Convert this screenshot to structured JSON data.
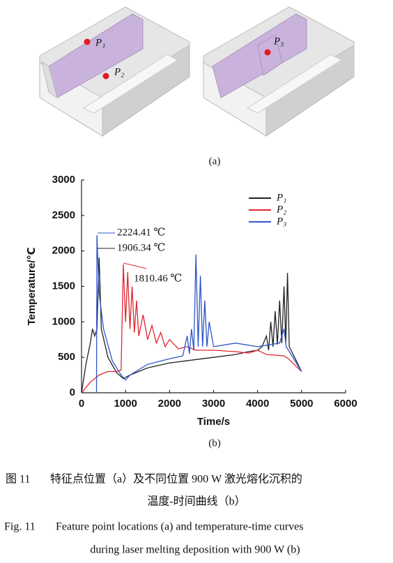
{
  "figure_a": {
    "points": [
      "P₁",
      "P₂",
      "P₃"
    ],
    "label": "(a)"
  },
  "chart_data": {
    "type": "line",
    "xlabel": "Time/s",
    "ylabel": "Temperature/℃",
    "xlim": [
      0,
      6000
    ],
    "ylim": [
      0,
      3000
    ],
    "xticks": [
      0,
      1000,
      2000,
      3000,
      4000,
      5000,
      6000
    ],
    "yticks": [
      0,
      500,
      1000,
      1500,
      2000,
      2500,
      3000
    ],
    "legend": "top-right",
    "series": [
      {
        "name": "P₁",
        "color": "#222222",
        "x": [
          0,
          100,
          200,
          250,
          300,
          350,
          400,
          450,
          600,
          800,
          950,
          1100,
          1500,
          2000,
          2500,
          3000,
          3500,
          3800,
          4000,
          4100,
          4200,
          4250,
          4300,
          4350,
          4400,
          4450,
          4500,
          4550,
          4600,
          4640,
          4680,
          4720,
          4800,
          5000
        ],
        "values": [
          0,
          400,
          700,
          900,
          800,
          900,
          1906.34,
          900,
          500,
          280,
          200,
          250,
          350,
          420,
          460,
          500,
          540,
          580,
          600,
          650,
          800,
          600,
          1000,
          650,
          1150,
          680,
          1300,
          700,
          1500,
          700,
          1690,
          650,
          550,
          300
        ]
      },
      {
        "name": "P₂",
        "color": "#e0262e",
        "x": [
          0,
          200,
          400,
          600,
          800,
          900,
          950,
          1000,
          1050,
          1100,
          1150,
          1200,
          1250,
          1300,
          1400,
          1500,
          1600,
          1700,
          1800,
          1900,
          2000,
          2200,
          2400,
          2600,
          3000,
          3500,
          3800,
          4000,
          4200,
          4600,
          4700,
          5000
        ],
        "values": [
          0,
          150,
          250,
          300,
          300,
          320,
          1810.46,
          1000,
          1700,
          900,
          1500,
          850,
          1300,
          800,
          1100,
          750,
          950,
          700,
          850,
          650,
          750,
          620,
          650,
          600,
          600,
          580,
          560,
          600,
          540,
          520,
          480,
          300
        ]
      },
      {
        "name": "P₃",
        "color": "#2f55c8",
        "x": [
          340,
          350,
          400,
          500,
          700,
          900,
          1000,
          1100,
          1500,
          2000,
          2300,
          2400,
          2450,
          2500,
          2550,
          2600,
          2650,
          2700,
          2750,
          2800,
          2850,
          2900,
          3000,
          3500,
          4000,
          4500,
          4600,
          4650,
          4700,
          5000
        ],
        "values": [
          0,
          2224.41,
          1400,
          900,
          450,
          250,
          180,
          250,
          400,
          480,
          520,
          800,
          550,
          900,
          600,
          1950,
          650,
          1650,
          650,
          1300,
          650,
          1000,
          650,
          700,
          650,
          700,
          900,
          650,
          600,
          300
        ]
      }
    ],
    "annotations": [
      "2224.41 ℃",
      "1906.34 ℃",
      "1810.46 ℃"
    ],
    "label": "(b)"
  },
  "caption": {
    "zh": {
      "label": "图 11",
      "lines": [
        "特征点位置（a）及不同位置 900 W 激光熔化沉积的",
        "温度-时间曲线（b）"
      ]
    },
    "en": {
      "label": "Fig. 11",
      "lines": [
        "Feature point locations (a) and temperature-time curves",
        "during laser melting deposition with 900 W (b)"
      ]
    }
  }
}
